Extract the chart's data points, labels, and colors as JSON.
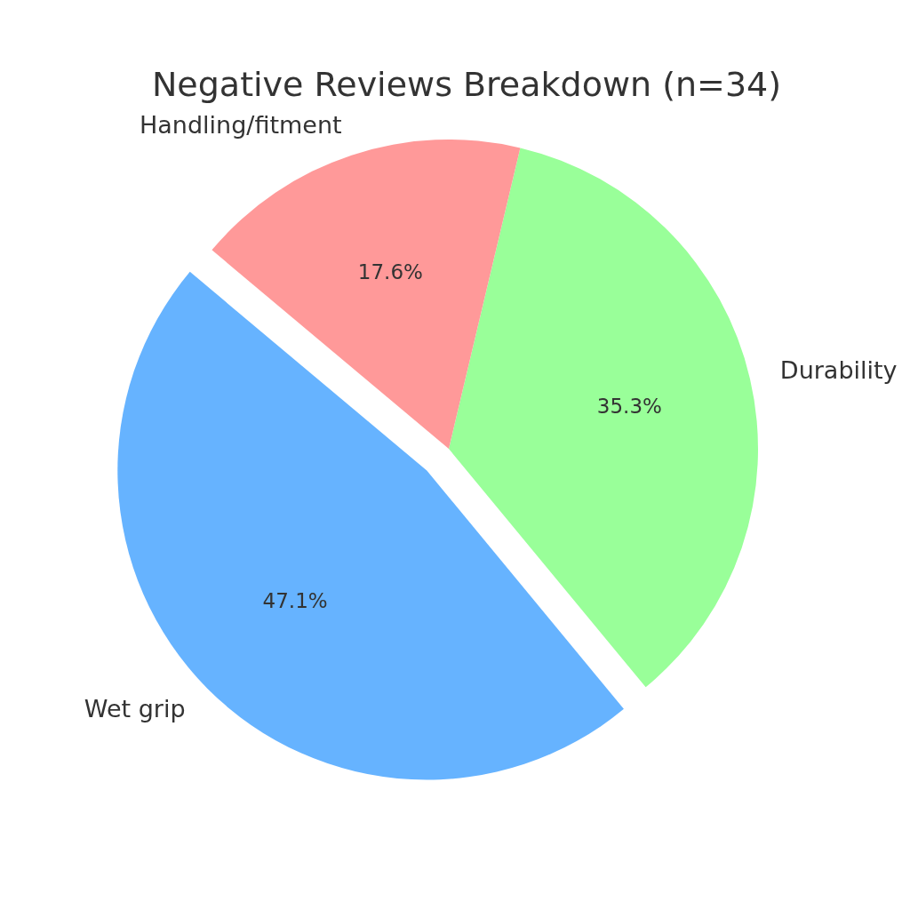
{
  "chart_data": {
    "type": "pie",
    "title": "Negative Reviews Breakdown (n=34)",
    "categories": [
      "Wet grip",
      "Durability",
      "Handling/fitment"
    ],
    "values": [
      47.1,
      35.3,
      17.6
    ],
    "colors": [
      "#66b3ff",
      "#99ff99",
      "#ff9999"
    ],
    "value_labels": [
      "47.1%",
      "35.3%",
      "17.6%"
    ]
  }
}
